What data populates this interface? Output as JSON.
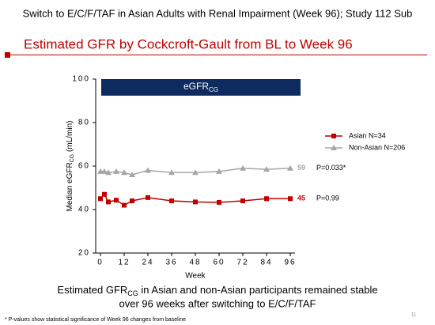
{
  "header": {
    "title": "Switch to E/C/F/TAF in Asian  Adults with Renal Impairment (Week 96); Study 112 Sub",
    "subtitle": "Estimated GFR by Cockcroft-Gault from BL to Week 96"
  },
  "chart_data": {
    "type": "line",
    "banner": [
      "eGFR",
      "CG"
    ],
    "y_label": [
      "Median eGFR",
      "CG",
      " (mL/min)"
    ],
    "x_label": "Week",
    "x": [
      0,
      2,
      4,
      8,
      12,
      16,
      24,
      36,
      48,
      60,
      72,
      84,
      96
    ],
    "series": [
      {
        "name": "Asian N=34",
        "color": "#c00000",
        "marker": "square",
        "values": [
          45,
          47,
          43.5,
          44.3,
          42,
          44,
          45.5,
          44,
          43.5,
          43.3,
          44,
          45,
          45
        ],
        "annotation": "P=0.99"
      },
      {
        "name": "Non-Asian N=206",
        "color": "#a6a6a6",
        "marker": "triangle",
        "values": [
          57.5,
          57.5,
          57,
          57.5,
          57,
          56,
          58,
          57,
          57,
          57.5,
          59,
          58.5,
          59
        ],
        "annotation": "P=0.033*"
      }
    ],
    "xlim": [
      0,
      96
    ],
    "xticks": [
      0,
      12,
      24,
      36,
      48,
      60,
      72,
      84,
      96
    ],
    "ylim": [
      20,
      100
    ],
    "yticks": [
      20,
      40,
      60,
      80,
      100
    ],
    "legend": "right"
  },
  "caption": {
    "line1": [
      "Estimated GFR",
      "CG",
      " in Asian and non-Asian participants remained stable"
    ],
    "line2": "over 96 weeks after switching to E/C/F/TAF"
  },
  "footnote": "* P-values show statistical significance of Week 96 changes from baseline",
  "page_number": "11"
}
